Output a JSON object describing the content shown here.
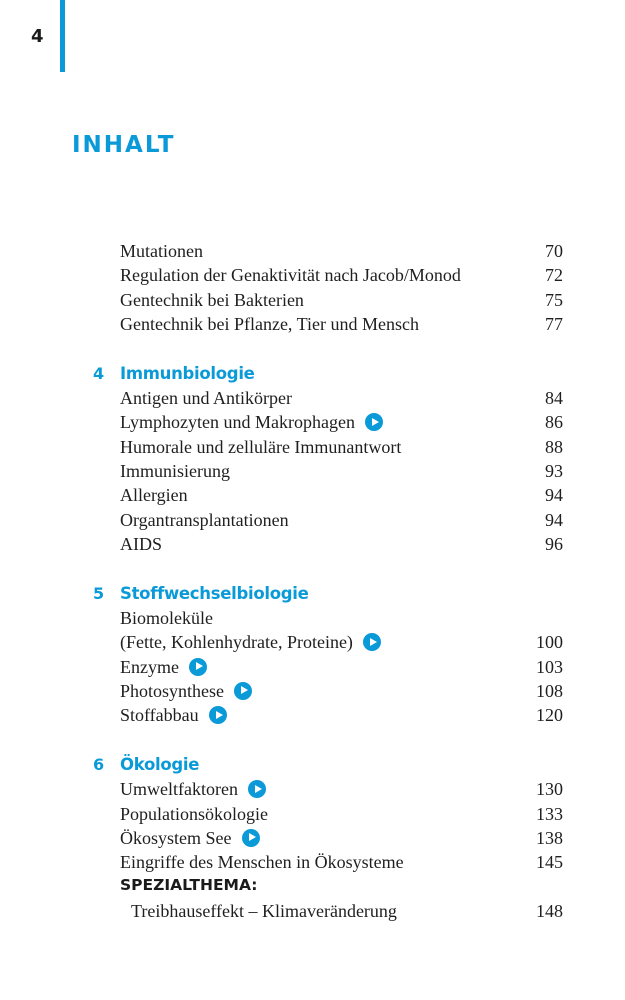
{
  "page_number": "4",
  "heading": "INHALT",
  "colors": {
    "accent": "#0a9ad8",
    "text": "#1f1f1f"
  },
  "entries": [
    {
      "type": "item",
      "text": "Mutationen",
      "page": "70"
    },
    {
      "type": "item",
      "text": "Regulation der Genaktivität nach Jacob/Monod",
      "page": "72"
    },
    {
      "type": "item",
      "text": "Gentechnik bei Bakterien",
      "page": "75"
    },
    {
      "type": "item",
      "text": "Gentechnik bei Pflanze, Tier und Mensch",
      "page": "77"
    },
    {
      "type": "gap"
    },
    {
      "type": "section",
      "number": "4",
      "text": "Immunbiologie"
    },
    {
      "type": "item",
      "text": "Antigen und Antikörper",
      "page": "84"
    },
    {
      "type": "item",
      "text": "Lymphozyten und Makrophagen",
      "page": "86",
      "icon": "play-icon"
    },
    {
      "type": "item",
      "text": "Humorale und zelluläre Immunantwort",
      "page": "88"
    },
    {
      "type": "item",
      "text": "Immunisierung",
      "page": "93"
    },
    {
      "type": "item",
      "text": "Allergien",
      "page": "94"
    },
    {
      "type": "item",
      "text": "Organtransplantationen",
      "page": "94"
    },
    {
      "type": "item",
      "text": "AIDS",
      "page": "96"
    },
    {
      "type": "gap"
    },
    {
      "type": "section",
      "number": "5",
      "text": "Stoffwechselbiologie"
    },
    {
      "type": "item",
      "text": "Biomoleküle"
    },
    {
      "type": "item",
      "text": "(Fette, Kohlenhydrate, Proteine)",
      "page": "100",
      "icon": "play-icon"
    },
    {
      "type": "item",
      "text": "Enzyme",
      "page": "103",
      "icon": "play-icon"
    },
    {
      "type": "item",
      "text": "Photosynthese",
      "page": "108",
      "icon": "play-icon"
    },
    {
      "type": "item",
      "text": "Stoffabbau",
      "page": "120",
      "icon": "play-icon"
    },
    {
      "type": "gap"
    },
    {
      "type": "section",
      "number": "6",
      "text": "Ökologie"
    },
    {
      "type": "item",
      "text": "Umweltfaktoren",
      "page": "130",
      "icon": "play-icon"
    },
    {
      "type": "item",
      "text": "Populationsökologie",
      "page": "133"
    },
    {
      "type": "item",
      "text": "Ökosystem See",
      "page": "138",
      "icon": "play-icon"
    },
    {
      "type": "item",
      "text": "Eingriffe des Menschen in Ökosysteme",
      "page": "145"
    },
    {
      "type": "special",
      "text": "SPEZIALTHEMA:"
    },
    {
      "type": "indent",
      "text": "Treibhauseffekt – Klimaveränderung",
      "page": "148"
    }
  ]
}
